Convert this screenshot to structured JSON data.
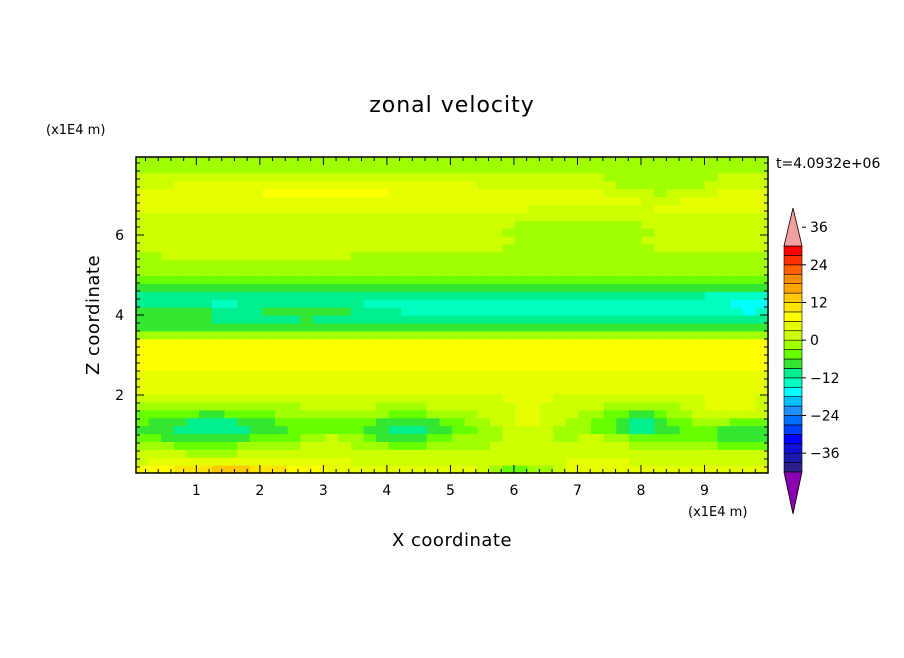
{
  "chart_data": {
    "type": "heatmap",
    "title": "zonal velocity",
    "xlabel": "X coordinate",
    "ylabel": "Z coordinate",
    "x_unit": "(x1E4 m)",
    "y_unit": "(x1E4 m)",
    "time_label": "t=4.0932e+06",
    "xlim": [
      0.05,
      10.0
    ],
    "ylim": [
      0.05,
      7.95
    ],
    "x_ticks": [
      1,
      2,
      3,
      4,
      5,
      6,
      7,
      8,
      9
    ],
    "y_ticks": [
      2,
      4,
      6
    ],
    "colorbar": {
      "levels": [
        -42,
        -39,
        -36,
        -33,
        -30,
        -27,
        -24,
        -21,
        -18,
        -15,
        -12,
        -9,
        -6,
        -3,
        0,
        3,
        6,
        9,
        12,
        15,
        18,
        21,
        24,
        27,
        30,
        33,
        36,
        39,
        42
      ],
      "colors": [
        "#2a1f8c",
        "#1a1ab0",
        "#1010d8",
        "#0000ff",
        "#0040ff",
        "#0070ff",
        "#1e90ff",
        "#00c0ff",
        "#00ffff",
        "#00ffc0",
        "#00f090",
        "#32e632",
        "#66ff00",
        "#a0ff00",
        "#ccff00",
        "#e6ff00",
        "#ffff00",
        "#ffe600",
        "#ffc800",
        "#ffa500",
        "#ff8c00",
        "#ff6000",
        "#ff3000",
        "#ff0000"
      ],
      "under_color": "#8b00b0",
      "over_color": "#f4a0a0",
      "tick_labels": [
        -36,
        -24,
        -12,
        0,
        12,
        24,
        36
      ]
    },
    "field": {
      "nx": 50,
      "nz": 40,
      "background_u": [
        [
          0.0,
          6
        ],
        [
          0.5,
          1.5
        ],
        [
          1.2,
          -5
        ],
        [
          2.0,
          3
        ],
        [
          2.8,
          7
        ],
        [
          3.3,
          8
        ],
        [
          3.6,
          -5
        ],
        [
          4.0,
          -12
        ],
        [
          4.4,
          -14
        ],
        [
          4.8,
          -5
        ],
        [
          5.3,
          -1
        ],
        [
          6.0,
          1
        ],
        [
          6.6,
          3
        ],
        [
          7.1,
          4.5
        ],
        [
          7.6,
          -1
        ],
        [
          7.95,
          0
        ]
      ],
      "bumps": [
        {
          "x": 6.2,
          "z": 1.3,
          "sx": 0.75,
          "sz": 0.45,
          "a": 7
        },
        {
          "x": 8.0,
          "z": 1.35,
          "sx": 0.5,
          "sz": 0.4,
          "a": -7
        },
        {
          "x": 4.3,
          "z": 1.1,
          "sx": 0.6,
          "sz": 0.4,
          "a": -6
        },
        {
          "x": 1.2,
          "z": 1.2,
          "sx": 1.0,
          "sz": 0.5,
          "a": -7
        },
        {
          "x": 1.5,
          "z": 0.12,
          "sx": 1.2,
          "sz": 0.15,
          "a": 8
        },
        {
          "x": 6.1,
          "z": 0.08,
          "sx": 0.6,
          "sz": 0.1,
          "a": -14
        },
        {
          "x": 9.6,
          "z": 0.95,
          "sx": 0.5,
          "sz": 0.3,
          "a": -6
        },
        {
          "x": 9.4,
          "z": 1.6,
          "sx": 0.7,
          "sz": 0.3,
          "a": 4
        },
        {
          "x": 3.1,
          "z": 0.8,
          "sx": 0.35,
          "sz": 0.25,
          "a": 4
        },
        {
          "x": 7.4,
          "z": 0.8,
          "sx": 0.4,
          "sz": 0.3,
          "a": 4
        },
        {
          "x": 8.3,
          "z": 7.2,
          "sx": 0.8,
          "sz": 0.25,
          "a": -6
        },
        {
          "x": 3.0,
          "z": 7.2,
          "sx": 1.5,
          "sz": 0.3,
          "a": 3
        },
        {
          "x": 0.6,
          "z": 4.1,
          "sx": 0.7,
          "sz": 0.2,
          "a": 6
        },
        {
          "x": 2.7,
          "z": 4.15,
          "sx": 1.0,
          "sz": 0.2,
          "a": 6
        },
        {
          "x": 9.7,
          "z": 4.2,
          "sx": 0.4,
          "sz": 0.3,
          "a": -3
        },
        {
          "x": 2.0,
          "z": 5.6,
          "sx": 1.2,
          "sz": 0.25,
          "a": 3
        },
        {
          "x": 7.0,
          "z": 6.2,
          "sx": 1.5,
          "sz": 0.3,
          "a": -3
        }
      ]
    }
  }
}
